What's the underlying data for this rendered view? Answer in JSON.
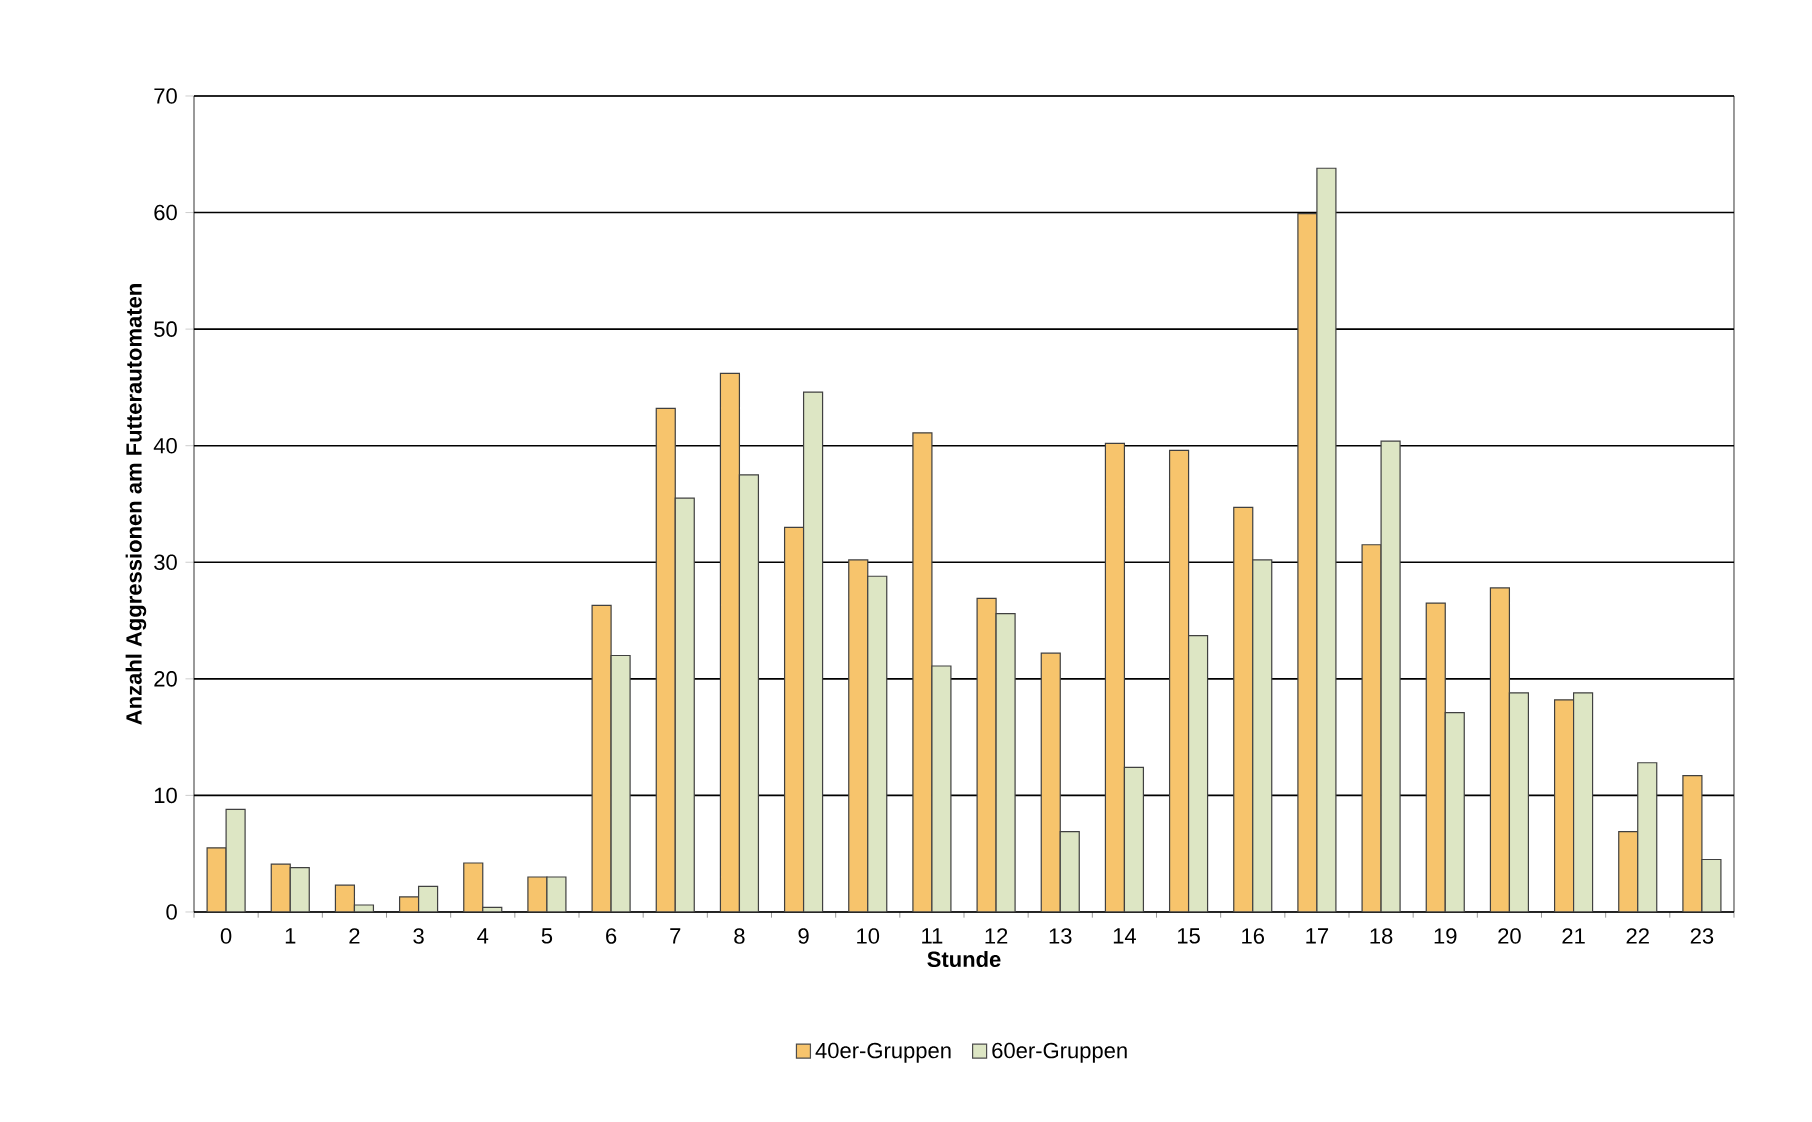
{
  "chart_data": {
    "type": "bar",
    "xlabel": "Stunde",
    "ylabel": "Anzahl Aggressionen am Futterautomaten",
    "categories": [
      "0",
      "1",
      "2",
      "3",
      "4",
      "5",
      "6",
      "7",
      "8",
      "9",
      "10",
      "11",
      "12",
      "13",
      "14",
      "15",
      "16",
      "17",
      "18",
      "19",
      "20",
      "21",
      "22",
      "23"
    ],
    "series": [
      {
        "name": "40er-Gruppen",
        "color": "#f7c46c",
        "values": [
          5.5,
          4.1,
          2.3,
          1.3,
          4.2,
          3.0,
          26.3,
          43.2,
          46.2,
          33.0,
          30.2,
          41.1,
          26.9,
          22.2,
          40.2,
          39.6,
          34.7,
          59.9,
          31.5,
          26.5,
          27.8,
          18.2,
          6.9,
          11.7
        ]
      },
      {
        "name": "60er-Gruppen",
        "color": "#dde6c4",
        "values": [
          8.8,
          3.8,
          0.6,
          2.2,
          0.4,
          3.0,
          22.0,
          35.5,
          37.5,
          44.6,
          28.8,
          21.1,
          25.6,
          6.9,
          12.4,
          23.7,
          30.2,
          63.8,
          40.4,
          17.1,
          18.8,
          18.8,
          12.8,
          4.5
        ]
      }
    ],
    "ylim": [
      0,
      70
    ],
    "yticks": [
      0,
      10,
      20,
      30,
      40,
      50,
      60,
      70
    ],
    "grid": "y",
    "legend": "bottom"
  }
}
